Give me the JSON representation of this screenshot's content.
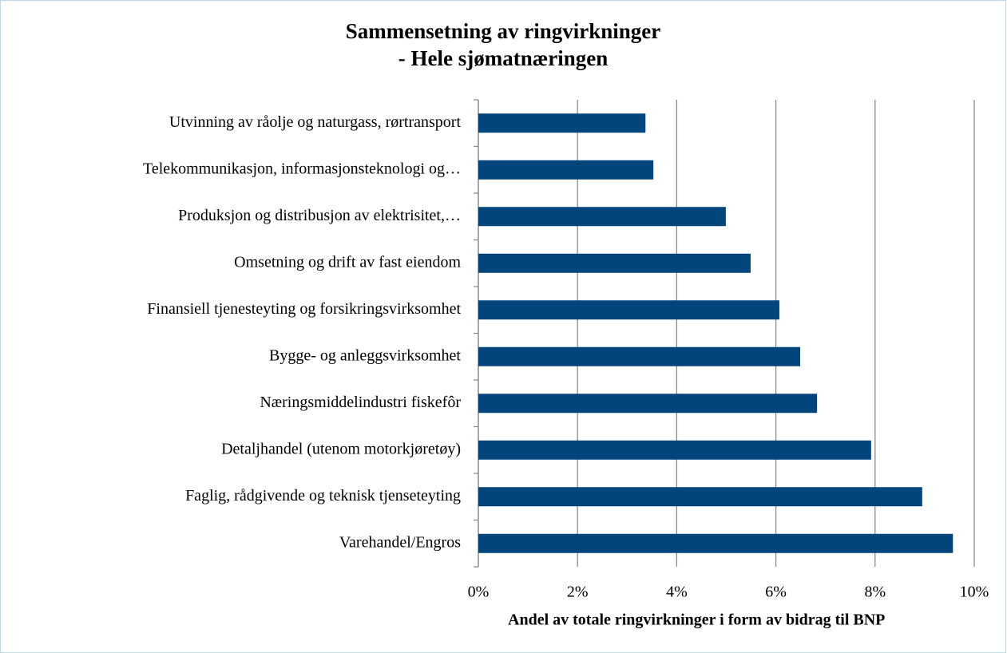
{
  "chart_data": {
    "type": "bar",
    "orientation": "horizontal",
    "title": "Sammensetning av ringvirkninger",
    "subtitle": "- Hele sjømatnæringen",
    "x_label": "Andel av totale ringvirkninger i form av bidrag til BNP",
    "categories": [
      "Utvinning av råolje og naturgass, rørtransport",
      "Telekommunikasjon, informasjonsteknologi og…",
      "Produksjon og distribusjon av elektrisitet,…",
      "Omsetning og drift av fast eiendom",
      "Finansiell tjenesteyting og forsikringsvirksomhet",
      "Bygge- og anleggsvirksomhet",
      "Næringsmiddelindustri fiskefôr",
      "Detaljhandel (utenom motorkjøretøy)",
      "Faglig, rådgivende og teknisk tjenseteyting",
      "Varehandel/Engros"
    ],
    "values": [
      3.37,
      3.53,
      4.99,
      5.49,
      6.07,
      6.49,
      6.83,
      7.92,
      8.95,
      9.57
    ],
    "color": "#00457c",
    "xlim": [
      0,
      10
    ],
    "xticks": [
      {
        "value": 0,
        "label": "0%"
      },
      {
        "value": 2,
        "label": "2%"
      },
      {
        "value": 4,
        "label": "4%"
      },
      {
        "value": 6,
        "label": "6%"
      },
      {
        "value": 8,
        "label": "8%"
      },
      {
        "value": 10,
        "label": "10%"
      }
    ],
    "grid": true
  }
}
